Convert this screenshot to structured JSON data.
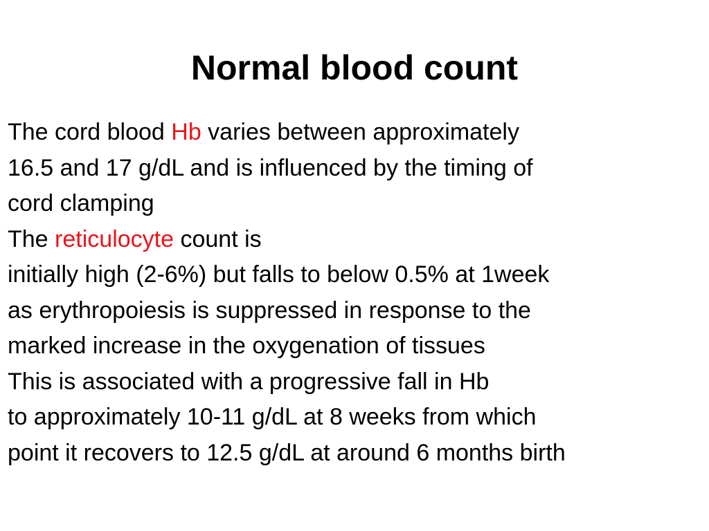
{
  "slide": {
    "title": "Normal blood count",
    "colors": {
      "text": "#000000",
      "highlight": "#e8141b",
      "background": "#ffffff"
    },
    "lines": [
      {
        "pre": "The cord blood ",
        "hl": "Hb",
        "post": " varies between approximately"
      },
      {
        "text": "16.5 and 17 g/dL and is influenced by the timing of"
      },
      {
        "text": "cord clamping"
      },
      {
        "pre": "The ",
        "hl": "reticulocyte",
        "post": " count is"
      },
      {
        "text": "initially high (2-6%) but falls to below 0.5% at 1week"
      },
      {
        "text": "as erythropoiesis is suppressed in response to the"
      },
      {
        "text": "marked increase in the oxygenation of  tissues"
      },
      {
        "text": "This is associated with a progressive fall in Hb"
      },
      {
        "text": "to approximately 10-11 g/dL at 8 weeks from which"
      },
      {
        "text": "point it recovers to 12.5 g/dL at around 6 months birth"
      }
    ]
  }
}
